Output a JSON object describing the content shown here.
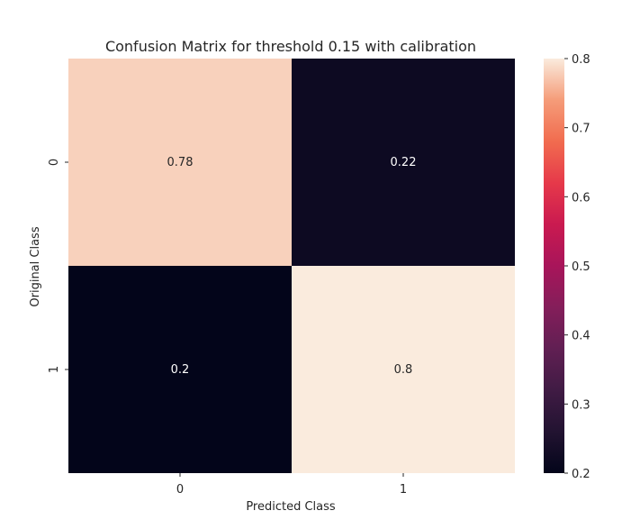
{
  "chart_data": {
    "type": "heatmap",
    "title": "Confusion Matrix for threshold 0.15 with calibration",
    "xlabel": "Predicted Class",
    "ylabel": "Original Class",
    "x_categories": [
      "0",
      "1"
    ],
    "y_categories": [
      "0",
      "1"
    ],
    "values": [
      [
        0.78,
        0.22
      ],
      [
        0.2,
        0.8
      ]
    ],
    "cell_labels": [
      [
        "0.78",
        "0.22"
      ],
      [
        "0.2",
        "0.8"
      ]
    ],
    "colorbar": {
      "range": [
        0.2,
        0.8
      ],
      "ticks": [
        "0.2",
        "0.3",
        "0.4",
        "0.5",
        "0.6",
        "0.7",
        "0.8"
      ],
      "colormap": "rocket"
    }
  }
}
